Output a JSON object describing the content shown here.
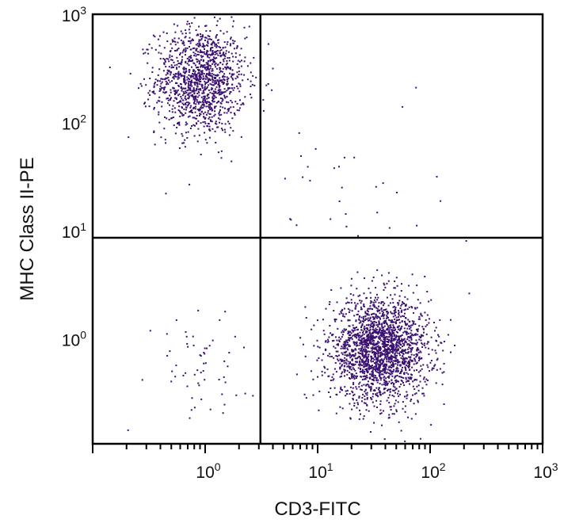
{
  "chart_data": {
    "type": "scatter",
    "title": "",
    "xlabel": "CD3-FITC",
    "ylabel": "MHC Class II-PE",
    "x_scale": "log",
    "y_scale": "log",
    "xlim": [
      0.1,
      1000
    ],
    "ylim": [
      0.107,
      1000
    ],
    "x_ticks": [
      {
        "value": 1,
        "base": "10",
        "exp": "0"
      },
      {
        "value": 10,
        "base": "10",
        "exp": "1"
      },
      {
        "value": 100,
        "base": "10",
        "exp": "2"
      },
      {
        "value": 1000,
        "base": "10",
        "exp": "3"
      }
    ],
    "y_ticks": [
      {
        "value": 1,
        "base": "10",
        "exp": "0"
      },
      {
        "value": 10,
        "base": "10",
        "exp": "1"
      },
      {
        "value": 100,
        "base": "10",
        "exp": "2"
      },
      {
        "value": 1000,
        "base": "10",
        "exp": "3"
      }
    ],
    "quadrant_gates": {
      "x": 3.1,
      "y": 8.6
    },
    "grid": false,
    "point_color": "#3a1070",
    "populations": [
      {
        "quadrant": "upper-left",
        "center": [
          0.9,
          250
        ],
        "spread_log10": [
          0.2,
          0.25
        ],
        "count": 1300
      },
      {
        "quadrant": "lower-right",
        "center": [
          35,
          0.8
        ],
        "spread_log10": [
          0.22,
          0.24
        ],
        "count": 2100
      },
      {
        "quadrant": "lower-left",
        "center": [
          0.8,
          0.6
        ],
        "spread_log10": [
          0.25,
          0.25
        ],
        "count": 60
      },
      {
        "quadrant": "upper-right",
        "center": [
          20,
          30
        ],
        "spread_log10": [
          0.4,
          0.5
        ],
        "count": 35
      }
    ]
  }
}
